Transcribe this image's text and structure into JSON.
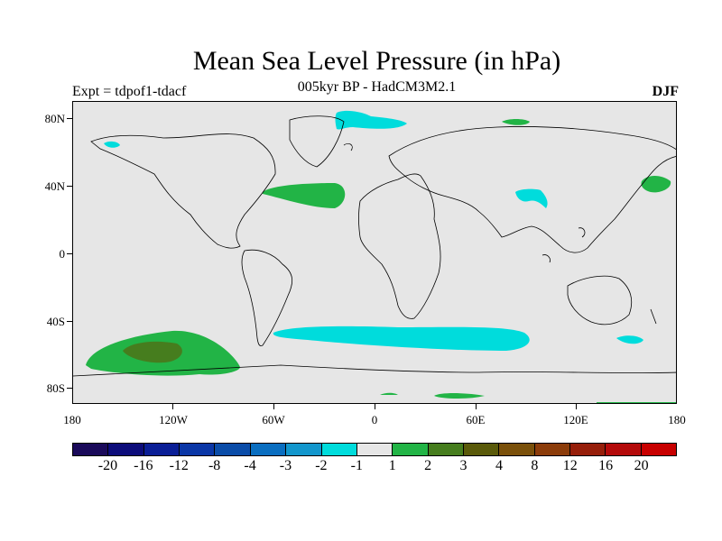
{
  "title": "Mean Sea Level Pressure (in hPa)",
  "subtitle": "005kyr BP - HadCM3M2.1",
  "experiment": "Expt = tdpof1-tdacf",
  "season": "DJF",
  "map": {
    "background": "#e6e6e6",
    "latitude_labels": [
      "80N",
      "40N",
      "0",
      "40S",
      "80S"
    ],
    "longitude_labels": [
      "180",
      "120W",
      "60W",
      "0",
      "60E",
      "120E",
      "180"
    ]
  },
  "colorbar": {
    "colors": [
      "#1a0a5a",
      "#0c0c7a",
      "#0a1e96",
      "#0a36a6",
      "#0a4ca8",
      "#0a6ec0",
      "#1296cc",
      "#00dcdc",
      "#e6e6e6",
      "#22b446",
      "#467d1e",
      "#5a5a0a",
      "#7a500a",
      "#8c3c0a",
      "#961e0a",
      "#b40a0a",
      "#c80000"
    ],
    "labels": [
      "-20",
      "-16",
      "-12",
      "-8",
      "-4",
      "-3",
      "-2",
      "-1",
      "1",
      "2",
      "3",
      "4",
      "8",
      "12",
      "16",
      "20"
    ]
  },
  "anomaly_regions": [
    {
      "name": "south-pacific-positive",
      "value_range": "2 to 3 hPa",
      "class": "2"
    },
    {
      "name": "south-pacific-core",
      "value_range": "3 to 4 hPa",
      "class": "3"
    },
    {
      "name": "north-atlantic-positive",
      "value_range": "2 to 3 hPa",
      "class": "2"
    },
    {
      "name": "north-pacific-positive",
      "value_range": "2 to 3 hPa",
      "class": "2"
    },
    {
      "name": "siberia-positive",
      "value_range": "2 to 3 hPa",
      "class": "2"
    },
    {
      "name": "southern-ocean-negative",
      "value_range": "-2 to -1 hPa",
      "class": "-1"
    },
    {
      "name": "greenland-negative",
      "value_range": "-2 to -1 hPa",
      "class": "-1"
    },
    {
      "name": "tibet-negative",
      "value_range": "-2 to -1 hPa",
      "class": "-1"
    },
    {
      "name": "alaska-negative",
      "value_range": "-2 to -1 hPa",
      "class": "-1"
    },
    {
      "name": "tasman-negative",
      "value_range": "-2 to -1 hPa",
      "class": "-1"
    }
  ]
}
